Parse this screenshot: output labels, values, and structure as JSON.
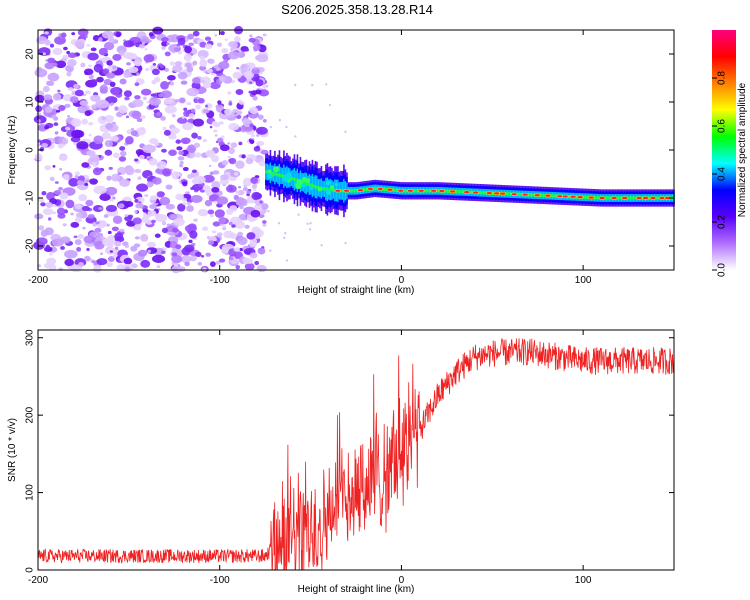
{
  "title": "S206.2025.358.13.28.R14",
  "chart_data": [
    {
      "type": "heatmap",
      "xlabel": "Height of straight line (km)",
      "ylabel": "Frequency (Hz)",
      "xlim": [
        -200,
        150
      ],
      "ylim": [
        -25,
        25
      ],
      "xticks": [
        -200,
        -100,
        0,
        100
      ],
      "yticks": [
        -20,
        -10,
        0,
        10,
        20
      ],
      "noise_region_x": [
        -200,
        -75
      ],
      "carrier_track": {
        "x": [
          -75,
          -60,
          -45,
          -35,
          -25,
          -15,
          0,
          20,
          50,
          80,
          110,
          150
        ],
        "freq_hz": [
          -4.5,
          -6,
          -8,
          -8.5,
          -8.5,
          -8,
          -8.5,
          -8.5,
          -9,
          -9.5,
          -10,
          -10
        ]
      },
      "colorbar": {
        "label": "Normalized spectral amplitude",
        "ticks": [
          0.0,
          0.2,
          0.4,
          0.6,
          0.8
        ],
        "range": [
          0,
          1
        ],
        "colors": [
          "#ffffff",
          "#b070ff",
          "#5a00ff",
          "#0000ff",
          "#00ffff",
          "#00ff00",
          "#ffff00",
          "#ff8000",
          "#ff0000",
          "#ff0080"
        ]
      }
    },
    {
      "type": "line",
      "xlabel": "Height of straight line (km)",
      "ylabel": "SNR (10 * v/v)",
      "xlim": [
        -200,
        150
      ],
      "ylim": [
        0,
        310
      ],
      "xticks": [
        -200,
        -100,
        0,
        100
      ],
      "yticks": [
        0,
        100,
        200,
        300
      ],
      "color": "#ee2222",
      "profile": {
        "x": [
          -200,
          -75,
          -70,
          -50,
          -40,
          -30,
          -20,
          -10,
          0,
          10,
          20,
          30,
          40,
          50,
          70,
          100,
          150
        ],
        "snr": [
          18,
          18,
          30,
          55,
          70,
          95,
          110,
          120,
          150,
          180,
          225,
          255,
          275,
          280,
          282,
          270,
          270
        ]
      }
    }
  ]
}
